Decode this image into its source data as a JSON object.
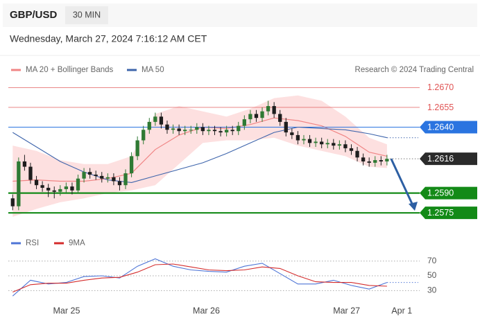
{
  "header": {
    "symbol": "GBP/USD",
    "interval": "30 MIN",
    "datetime": "Wednesday, March 27, 2024 7:16:12 AM CET"
  },
  "chart_data": [
    {
      "type": "candlestick",
      "credit": "Research © 2024 Trading Central",
      "up_color": "#2f7a34",
      "down_color": "#1e1e1e",
      "xlim": [
        -0.5,
        68.5
      ],
      "xticks": [
        {
          "value": 9.07,
          "label": "Mar 25"
        },
        {
          "value": 32.6,
          "label": "Mar 26"
        },
        {
          "value": 56.2,
          "label": "Mar 27"
        },
        {
          "value": 65.5,
          "label": "Apr 1"
        }
      ],
      "ylim": [
        1.2563,
        1.2676
      ],
      "open": [
        1.2586,
        1.258,
        1.2614,
        1.261,
        1.26,
        1.2596,
        1.2594,
        1.2592,
        1.2591,
        1.2593,
        1.2595,
        1.2592,
        1.2601,
        1.2606,
        1.2604,
        1.2603,
        1.2601,
        1.2602,
        1.2599,
        1.2596,
        1.2605,
        1.2618,
        1.263,
        1.2638,
        1.2644,
        1.2648,
        1.2642,
        1.2638,
        1.2639,
        1.2637,
        1.2638,
        1.2638,
        1.264,
        1.2637,
        1.2638,
        1.2637,
        1.2636,
        1.2638,
        1.2637,
        1.2641,
        1.2646,
        1.265,
        1.2647,
        1.2652,
        1.2656,
        1.265,
        1.2644,
        1.2636,
        1.2634,
        1.263,
        1.2631,
        1.2628,
        1.2629,
        1.2627,
        1.2628,
        1.2626,
        1.2627,
        1.2624,
        1.2622,
        1.2617,
        1.2614,
        1.2613,
        1.2615,
        1.2614
      ],
      "high": [
        1.2589,
        1.2617,
        1.2619,
        1.2613,
        1.2603,
        1.2599,
        1.2597,
        1.2595,
        1.2596,
        1.2598,
        1.2598,
        1.2604,
        1.2609,
        1.2609,
        1.2607,
        1.2606,
        1.2605,
        1.2605,
        1.2602,
        1.2608,
        1.2621,
        1.2633,
        1.2641,
        1.2647,
        1.2651,
        1.2651,
        1.2645,
        1.2642,
        1.2642,
        1.2641,
        1.2641,
        1.2643,
        1.2643,
        1.2641,
        1.2641,
        1.264,
        1.2641,
        1.2641,
        1.2644,
        1.2649,
        1.2653,
        1.2653,
        1.2655,
        1.266,
        1.2659,
        1.2653,
        1.2647,
        1.2639,
        1.2637,
        1.2634,
        1.2634,
        1.2632,
        1.2632,
        1.2631,
        1.2631,
        1.263,
        1.263,
        1.2627,
        1.2625,
        1.262,
        1.2617,
        1.2618,
        1.2618,
        1.2619
      ],
      "low": [
        1.2577,
        1.2577,
        1.2607,
        1.2597,
        1.2593,
        1.2591,
        1.2587,
        1.2586,
        1.2588,
        1.259,
        1.2589,
        1.259,
        1.2598,
        1.2601,
        1.26,
        1.2598,
        1.2598,
        1.2596,
        1.2592,
        1.2593,
        1.2602,
        1.2615,
        1.2627,
        1.2635,
        1.2641,
        1.2639,
        1.2635,
        1.2635,
        1.2634,
        1.2634,
        1.2635,
        1.2635,
        1.2634,
        1.2634,
        1.2634,
        1.2633,
        1.2633,
        1.2634,
        1.2634,
        1.2638,
        1.2643,
        1.2644,
        1.2644,
        1.2649,
        1.2647,
        1.2641,
        1.2633,
        1.2631,
        1.2627,
        1.2627,
        1.2625,
        1.2625,
        1.2624,
        1.2624,
        1.2623,
        1.2623,
        1.2621,
        1.2619,
        1.2614,
        1.2611,
        1.261,
        1.261,
        1.2611,
        1.2611
      ],
      "close": [
        1.258,
        1.2614,
        1.261,
        1.26,
        1.2596,
        1.2594,
        1.2592,
        1.2591,
        1.2593,
        1.2595,
        1.2592,
        1.2601,
        1.2606,
        1.2604,
        1.2603,
        1.2601,
        1.2602,
        1.2599,
        1.2596,
        1.2605,
        1.2618,
        1.263,
        1.2638,
        1.2644,
        1.2648,
        1.2642,
        1.2638,
        1.2639,
        1.2637,
        1.2638,
        1.2638,
        1.264,
        1.2637,
        1.2638,
        1.2637,
        1.2636,
        1.2638,
        1.2637,
        1.2641,
        1.2646,
        1.265,
        1.2647,
        1.2652,
        1.2656,
        1.265,
        1.2644,
        1.2636,
        1.2634,
        1.263,
        1.2631,
        1.2628,
        1.2629,
        1.2627,
        1.2628,
        1.2626,
        1.2627,
        1.2624,
        1.2622,
        1.2617,
        1.2614,
        1.2613,
        1.2615,
        1.2614,
        1.2616
      ],
      "bands": {
        "name": "MA 20 + Bollinger Bands",
        "color": "#f08585",
        "fill": "#fde0e0",
        "x": [
          0,
          4,
          8,
          12,
          16,
          20,
          24,
          28,
          32,
          36,
          40,
          44,
          48,
          52,
          56,
          60,
          63
        ],
        "upper": [
          1.2626,
          1.2622,
          1.2615,
          1.2612,
          1.2612,
          1.2618,
          1.265,
          1.2656,
          1.2652,
          1.2648,
          1.2654,
          1.2662,
          1.2664,
          1.266,
          1.2648,
          1.2632,
          1.2627
        ],
        "middle": [
          1.2599,
          1.26,
          1.2599,
          1.2599,
          1.2601,
          1.2605,
          1.2623,
          1.2634,
          1.264,
          1.2639,
          1.2642,
          1.2647,
          1.2645,
          1.2641,
          1.2633,
          1.2621,
          1.2618
        ],
        "lower": [
          1.2572,
          1.2578,
          1.2583,
          1.2586,
          1.259,
          1.2592,
          1.2596,
          1.2612,
          1.2628,
          1.263,
          1.263,
          1.2632,
          1.2626,
          1.2622,
          1.2618,
          1.261,
          1.2609
        ]
      },
      "series": [
        {
          "name": "MA 50",
          "color": "#3d64ab",
          "x": [
            0,
            4,
            8,
            12,
            16,
            20,
            24,
            28,
            32,
            36,
            40,
            44,
            48,
            52,
            56,
            60,
            63
          ],
          "values": [
            1.2636,
            1.2625,
            1.2614,
            1.2606,
            1.26,
            1.2598,
            1.2603,
            1.2608,
            1.2613,
            1.262,
            1.2628,
            1.2636,
            1.264,
            1.2639,
            1.2638,
            1.2635,
            1.2632
          ]
        }
      ],
      "levels": [
        {
          "value": 1.267,
          "label": "1.2670",
          "color": "#e05353",
          "line": "thin",
          "box": false
        },
        {
          "value": 1.2655,
          "label": "1.2655",
          "color": "#e05353",
          "line": "thin",
          "box": false
        },
        {
          "value": 1.264,
          "label": "1.2640",
          "color": "#2a74e0",
          "line": "solid",
          "box": true
        },
        {
          "value": 1.2616,
          "label": "1.2616",
          "color": "#2b2b2b",
          "line": "dotted",
          "box": true
        },
        {
          "value": 1.259,
          "label": "1.2590",
          "color": "#138a17",
          "line": "thick",
          "box": true
        },
        {
          "value": 1.2575,
          "label": "1.2575",
          "color": "#138a17",
          "line": "thick",
          "box": true
        }
      ]
    },
    {
      "type": "line",
      "ylim": [
        20,
        81
      ],
      "yticks": [
        30,
        50,
        70
      ],
      "grid": true,
      "series": [
        {
          "name": "RSI",
          "color": "#4d74d6",
          "x": [
            0,
            3,
            6,
            9,
            12,
            15,
            18,
            21,
            24,
            27,
            30,
            33,
            36,
            39,
            42,
            45,
            48,
            51,
            54,
            57,
            60,
            63
          ],
          "values": [
            22.6,
            44,
            39,
            41,
            49,
            50,
            47,
            63,
            73,
            63,
            58,
            56,
            55,
            63,
            67,
            53,
            39,
            39,
            44,
            37,
            32,
            41
          ]
        },
        {
          "name": "9MA",
          "color": "#d42b2b",
          "x": [
            0,
            3,
            6,
            9,
            12,
            15,
            18,
            21,
            24,
            27,
            30,
            33,
            36,
            39,
            42,
            45,
            48,
            51,
            54,
            57,
            60,
            63
          ],
          "values": [
            28,
            38,
            40,
            40,
            44,
            47,
            48,
            55,
            65,
            66,
            62,
            58,
            57,
            58,
            62,
            60,
            50,
            42,
            41,
            41,
            37,
            36
          ]
        }
      ]
    }
  ]
}
